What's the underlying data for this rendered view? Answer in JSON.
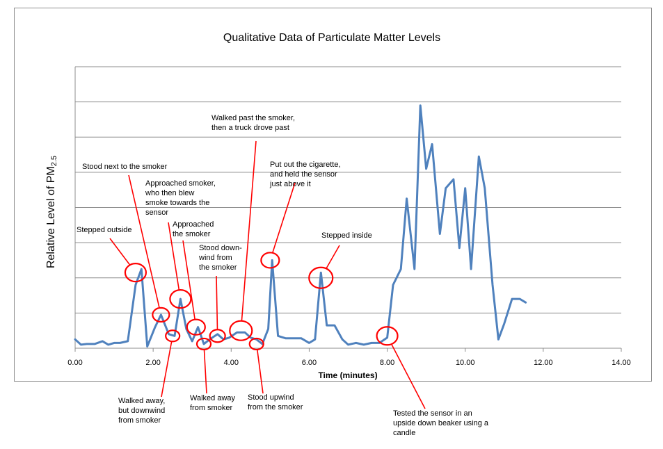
{
  "chart_data": {
    "type": "line",
    "title": "Qualitative Data of Particulate Matter Levels",
    "xlabel": "Time (minutes)",
    "ylabel": {
      "main": "Relative Level of PM",
      "subscript": "2.5"
    },
    "xlim": [
      0,
      14
    ],
    "ylim": [
      0,
      8
    ],
    "x_ticks": [
      "0.00",
      "2.00",
      "4.00",
      "6.00",
      "8.00",
      "10.00",
      "12.00",
      "14.00"
    ],
    "grid": "horizontal",
    "line_color": "#4f81bd",
    "annotation_color": "#ff0000",
    "series": [
      {
        "x": [
          0.0,
          0.15,
          0.3,
          0.5,
          0.7,
          0.85,
          1.0,
          1.15,
          1.35,
          1.55,
          1.7,
          1.85,
          2.05,
          2.2,
          2.4,
          2.55,
          2.7,
          2.85,
          3.0,
          3.15,
          3.3,
          3.45,
          3.65,
          3.8,
          3.95,
          4.15,
          4.35,
          4.5,
          4.65,
          4.8,
          4.95,
          5.05,
          5.2,
          5.4,
          5.6,
          5.8,
          6.0,
          6.15,
          6.3,
          6.45,
          6.65,
          6.85,
          7.0,
          7.2,
          7.4,
          7.6,
          7.8,
          8.0,
          8.15,
          8.35,
          8.5,
          8.7,
          8.85,
          9.0,
          9.15,
          9.35,
          9.5,
          9.7,
          9.85,
          10.0,
          10.15,
          10.35,
          10.5,
          10.7,
          10.85,
          11.0,
          11.2,
          11.4,
          11.55
        ],
        "y": [
          0.25,
          0.1,
          0.12,
          0.12,
          0.2,
          0.1,
          0.15,
          0.15,
          0.2,
          1.8,
          2.25,
          0.05,
          0.6,
          0.95,
          0.4,
          0.35,
          1.4,
          0.55,
          0.2,
          0.6,
          0.12,
          0.25,
          0.4,
          0.25,
          0.3,
          0.45,
          0.45,
          0.3,
          0.25,
          0.12,
          0.55,
          2.5,
          0.35,
          0.28,
          0.28,
          0.28,
          0.15,
          0.25,
          2.15,
          0.65,
          0.65,
          0.25,
          0.1,
          0.15,
          0.1,
          0.15,
          0.15,
          0.3,
          1.8,
          2.25,
          4.25,
          2.25,
          6.9,
          5.1,
          5.8,
          3.25,
          4.55,
          4.8,
          2.85,
          4.55,
          2.25,
          5.45,
          4.55,
          1.8,
          0.25,
          0.7,
          1.4,
          1.4,
          1.3
        ]
      }
    ],
    "annotations": [
      {
        "text": [
          "Stepped outside"
        ],
        "cx": 1.55,
        "cy": 2.15
      },
      {
        "text": [
          "Stood next to the smoker"
        ],
        "cx": 2.2,
        "cy": 0.95
      },
      {
        "text": [
          "Walked away,",
          "but downwind",
          "from smoker"
        ],
        "cx": 2.5,
        "cy": 0.35
      },
      {
        "text": [
          "Approached smoker,",
          "who then blew",
          "smoke towards the",
          "sensor"
        ],
        "cx": 2.7,
        "cy": 1.4
      },
      {
        "text": [
          "Approached",
          "the smoker"
        ],
        "cx": 3.1,
        "cy": 0.6
      },
      {
        "text": [
          "Walked away",
          "from smoker"
        ],
        "cx": 3.3,
        "cy": 0.12
      },
      {
        "text": [
          "Stood down-",
          "wind from",
          "the smoker"
        ],
        "cx": 3.65,
        "cy": 0.35
      },
      {
        "text": [
          "Walked past the smoker,",
          "then a truck drove past"
        ],
        "cx": 4.25,
        "cy": 0.5
      },
      {
        "text": [
          "Stood upwind",
          "from the smoker"
        ],
        "cx": 4.65,
        "cy": 0.12
      },
      {
        "text": [
          "Put out the cigarette,",
          "and held the sensor",
          "just above it"
        ],
        "cx": 5.0,
        "cy": 2.5
      },
      {
        "text": [
          "Stepped inside"
        ],
        "cx": 6.3,
        "cy": 2.0
      },
      {
        "text": [
          "Tested the sensor in an",
          "upside down beaker using a",
          "candle"
        ],
        "cx": 8.0,
        "cy": 0.35
      }
    ]
  }
}
